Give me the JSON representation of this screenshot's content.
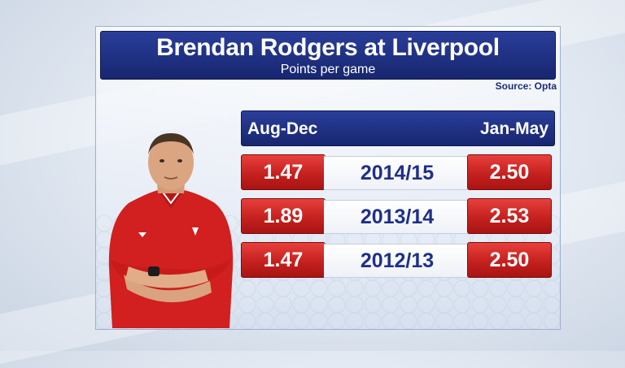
{
  "title": "Brendan Rodgers at Liverpool",
  "subtitle": "Points per game",
  "source": "Source: Opta",
  "columns": {
    "left": "Aug-Dec",
    "right": "Jan-May"
  },
  "rows": [
    {
      "left": "1.47",
      "season": "2014/15",
      "right": "2.50"
    },
    {
      "left": "1.89",
      "season": "2013/14",
      "right": "2.53"
    },
    {
      "left": "1.47",
      "season": "2012/13",
      "right": "2.50"
    }
  ],
  "colors": {
    "navy": "#17266f",
    "red": "#c5211f",
    "text_blue": "#1f2f8a"
  }
}
